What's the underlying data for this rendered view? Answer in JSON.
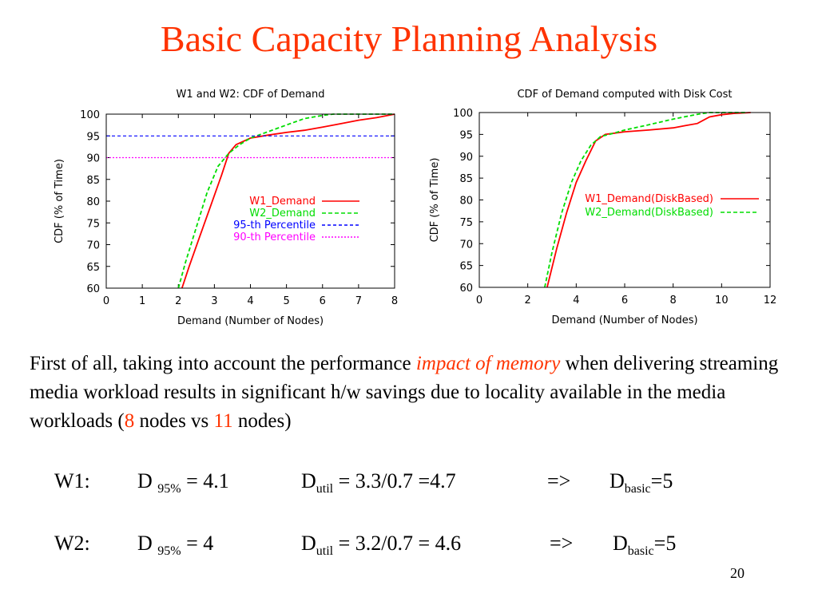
{
  "title": "Basic Capacity Planning Analysis",
  "colors": {
    "title": "#ff3300",
    "w1": "#ff0000",
    "w2": "#00dd00",
    "p95": "#0000ff",
    "p90": "#ff00ff"
  },
  "chart_data": [
    {
      "type": "line",
      "title": "W1 and W2:  CDF of Demand",
      "xlabel": "Demand (Number of Nodes)",
      "ylabel": "CDF (% of Time)",
      "xlim": [
        0,
        8
      ],
      "ylim": [
        60,
        100
      ],
      "xticks": [
        "0",
        "1",
        "2",
        "3",
        "4",
        "5",
        "6",
        "7",
        "8"
      ],
      "yticks": [
        "60",
        "65",
        "70",
        "75",
        "80",
        "85",
        "90",
        "95",
        "100"
      ],
      "legend_position": "right",
      "series": [
        {
          "name": "W1_Demand",
          "color": "#ff0000",
          "dash": "",
          "x": [
            2.1,
            2.3,
            2.6,
            2.9,
            3.2,
            3.4,
            3.6,
            4.0,
            4.5,
            5.0,
            5.5,
            6.0,
            6.5,
            7.0,
            7.5,
            8.0
          ],
          "y": [
            60,
            65,
            72,
            79,
            86,
            91,
            93,
            94.5,
            95.2,
            95.8,
            96.3,
            97,
            97.8,
            98.6,
            99.2,
            100
          ]
        },
        {
          "name": "W2_Demand",
          "color": "#00dd00",
          "dash": "5,3",
          "x": [
            2.0,
            2.2,
            2.5,
            2.8,
            3.1,
            3.4,
            3.7,
            4.0,
            4.5,
            5.0,
            5.5,
            6.0,
            6.3,
            8.0
          ],
          "y": [
            60,
            66,
            74,
            82,
            88,
            91,
            93,
            94.5,
            96,
            97.5,
            99,
            99.7,
            100,
            100
          ]
        },
        {
          "name": "95-th Percentile",
          "color": "#0000ff",
          "dash": "4,3",
          "x": [
            0,
            8
          ],
          "y": [
            95,
            95
          ]
        },
        {
          "name": "90-th Percentile",
          "color": "#ff00ff",
          "dash": "2,2",
          "x": [
            0,
            8
          ],
          "y": [
            90,
            90
          ]
        }
      ]
    },
    {
      "type": "line",
      "title": "CDF of Demand computed with Disk Cost",
      "xlabel": "Demand (Number of Nodes)",
      "ylabel": "CDF (% of Time)",
      "xlim": [
        0,
        12
      ],
      "ylim": [
        60,
        100
      ],
      "xticks": [
        "0",
        "2",
        "4",
        "6",
        "8",
        "10",
        "12"
      ],
      "yticks": [
        "60",
        "65",
        "70",
        "75",
        "80",
        "85",
        "90",
        "95",
        "100"
      ],
      "legend_position": "right",
      "series": [
        {
          "name": "W1_Demand(DiskBased)",
          "color": "#ff0000",
          "dash": "",
          "x": [
            2.8,
            3.2,
            3.6,
            4.0,
            4.4,
            4.8,
            5.2,
            6.0,
            7.0,
            8.0,
            8.5,
            9.0,
            9.5,
            10.0,
            10.5,
            11.2
          ],
          "y": [
            60,
            69,
            77,
            84,
            89,
            93.5,
            95,
            95.6,
            96,
            96.5,
            97,
            97.5,
            99,
            99.5,
            99.8,
            100
          ]
        },
        {
          "name": "W2_Demand(DiskBased)",
          "color": "#00dd00",
          "dash": "5,3",
          "x": [
            2.7,
            3.0,
            3.4,
            3.8,
            4.2,
            4.6,
            5.0,
            5.5,
            6.0,
            7.0,
            8.0,
            9.0,
            9.5,
            11.0
          ],
          "y": [
            60,
            68,
            77,
            84,
            89,
            92.5,
            94.5,
            95.2,
            96,
            97.2,
            98.5,
            99.6,
            100,
            100
          ]
        }
      ]
    }
  ],
  "paragraph": {
    "before": "First of all, taking into account the performance ",
    "emph": "impact of memory",
    "middle": " when delivering streaming media workload results in significant h/w savings due to locality available in the media workloads (",
    "n1": "8",
    "vs": " nodes vs ",
    "n2": "11",
    "after": " nodes)"
  },
  "equations": [
    {
      "label": "W1:",
      "d95_base": "D ",
      "d95_sub": "95%",
      "d95_val": " = 4.1",
      "dutil_base": "D",
      "dutil_sub": "util",
      "dutil_val": " = 3.3/0.7 =4.7",
      "arrow": "=>",
      "dbasic_base": "D",
      "dbasic_sub": "basic",
      "dbasic_val": "=5"
    },
    {
      "label": "W2:",
      "d95_base": "D ",
      "d95_sub": "95%",
      "d95_val": " = 4",
      "dutil_base": "D",
      "dutil_sub": "util",
      "dutil_val": " = 3.2/0.7 = 4.6",
      "arrow": "=>",
      "dbasic_base": "D",
      "dbasic_sub": "basic",
      "dbasic_val": "=5"
    }
  ],
  "page_number": "20"
}
